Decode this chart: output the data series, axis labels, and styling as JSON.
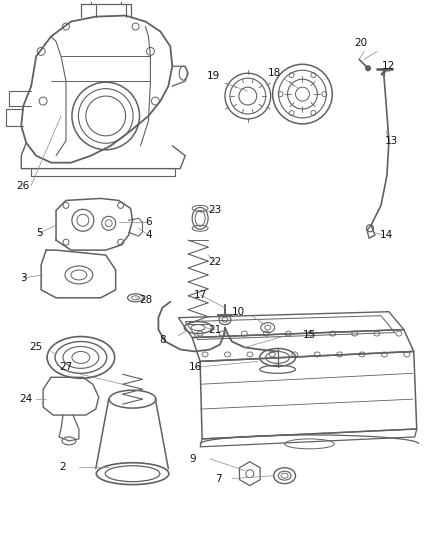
{
  "background_color": "#ffffff",
  "line_color": "#606060",
  "figsize": [
    4.38,
    5.33
  ],
  "dpi": 100
}
